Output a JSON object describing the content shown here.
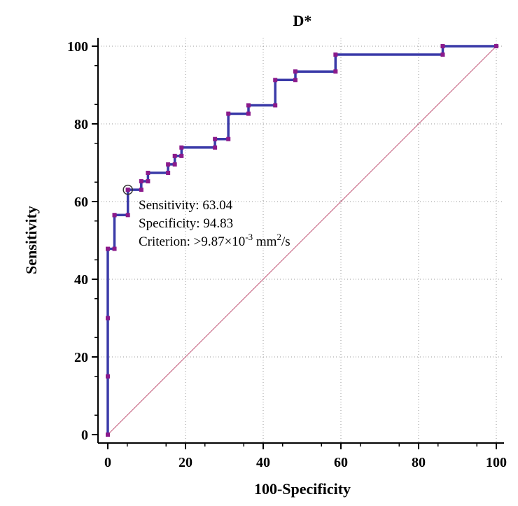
{
  "chart_data": {
    "type": "line",
    "title": "D*",
    "xlabel": "100-Specificity",
    "ylabel": "Sensitivity",
    "xlim": [
      0,
      100
    ],
    "ylim": [
      0,
      100
    ],
    "xticks": [
      "0",
      "20",
      "40",
      "60",
      "80",
      "100"
    ],
    "yticks": [
      "0",
      "20",
      "40",
      "60",
      "80",
      "100"
    ],
    "grid": true,
    "colors": {
      "roc_line": "#3a3aa8",
      "roc_marker": "#8b1a8b",
      "reference": "#c25a7a",
      "grid": "#9a9a9a"
    },
    "series": [
      {
        "name": "ROC curve",
        "x": [
          0,
          0,
          0,
          0,
          1.72,
          1.72,
          1.72,
          5.17,
          5.17,
          5.17,
          8.62,
          8.62,
          10.34,
          10.34,
          15.52,
          15.52,
          17.24,
          17.24,
          18.97,
          18.97,
          27.59,
          27.59,
          31.03,
          31.03,
          36.21,
          36.21,
          43.1,
          43.1,
          48.28,
          48.28,
          58.62,
          58.62,
          86.21,
          86.21,
          100
        ],
        "y": [
          0,
          15,
          30,
          47.83,
          47.83,
          56.52,
          56.52,
          56.52,
          63.04,
          63.04,
          63.04,
          65.22,
          65.22,
          67.39,
          67.39,
          69.57,
          69.57,
          71.74,
          71.74,
          73.91,
          73.91,
          76.09,
          76.09,
          82.61,
          82.61,
          84.78,
          84.78,
          91.3,
          91.3,
          93.48,
          93.48,
          97.83,
          97.83,
          100,
          100
        ]
      },
      {
        "name": "Reference line",
        "x": [
          0,
          100
        ],
        "y": [
          0,
          100
        ]
      }
    ],
    "optimal_point": {
      "x": 5.17,
      "y": 63.04
    },
    "annotation": {
      "sensitivity": "Sensitivity: 63.04",
      "specificity": "Specificity: 94.83",
      "criterion_prefix": "Criterion: >9.87×10",
      "criterion_exp1": "-3",
      "criterion_unit": " mm",
      "criterion_exp2": "2",
      "criterion_suffix": "/s"
    }
  }
}
